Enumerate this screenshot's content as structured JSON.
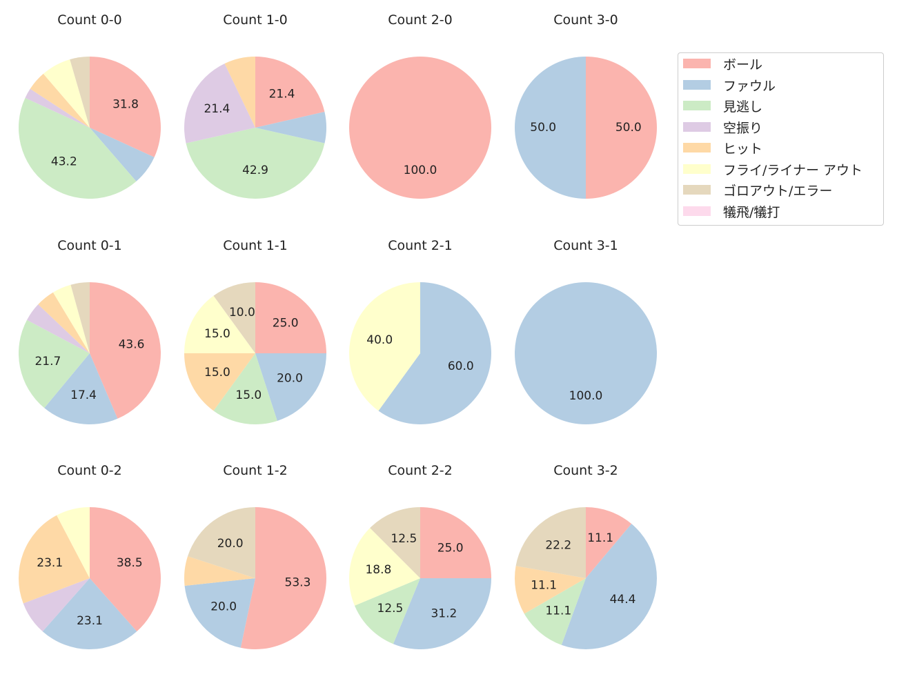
{
  "chart_data": {
    "type": "pie",
    "start_angle": 90,
    "direction": "clockwise",
    "label_min_percent": 10,
    "categories": [
      "ボール",
      "ファウル",
      "見逃し",
      "空振り",
      "ヒット",
      "フライ/ライナー アウト",
      "ゴロアウト/エラー",
      "犠飛/犠打"
    ],
    "colors": [
      "#fbb4ae",
      "#b3cde3",
      "#ccebc5",
      "#decbe4",
      "#fed9a6",
      "#ffffcc",
      "#e5d8bd",
      "#fddaec"
    ],
    "legend_position": "right",
    "charts": [
      {
        "title": "Count 0-0",
        "values": [
          31.8,
          6.8,
          43.2,
          2.3,
          4.5,
          6.8,
          4.5,
          0
        ]
      },
      {
        "title": "Count 1-0",
        "values": [
          21.4,
          7.1,
          42.9,
          21.4,
          7.1,
          0,
          0,
          0
        ]
      },
      {
        "title": "Count 2-0",
        "values": [
          100,
          0,
          0,
          0,
          0,
          0,
          0,
          0
        ]
      },
      {
        "title": "Count 3-0",
        "values": [
          50,
          50,
          0,
          0,
          0,
          0,
          0,
          0
        ]
      },
      {
        "title": "Count 0-1",
        "values": [
          43.5,
          17.4,
          21.7,
          4.3,
          4.3,
          4.3,
          4.3,
          0
        ]
      },
      {
        "title": "Count 1-1",
        "values": [
          25,
          20,
          15,
          0,
          15,
          15,
          10,
          0
        ]
      },
      {
        "title": "Count 2-1",
        "values": [
          0,
          60,
          0,
          0,
          0,
          40,
          0,
          0
        ]
      },
      {
        "title": "Count 3-1",
        "values": [
          0,
          100,
          0,
          0,
          0,
          0,
          0,
          0
        ]
      },
      {
        "title": "Count 0-2",
        "values": [
          38.5,
          23.1,
          0,
          7.7,
          23.1,
          7.7,
          0,
          0
        ]
      },
      {
        "title": "Count 1-2",
        "values": [
          53.3,
          20,
          0,
          0,
          6.7,
          0,
          20,
          0
        ]
      },
      {
        "title": "Count 2-2",
        "values": [
          25,
          31.2,
          12.5,
          0,
          0,
          18.8,
          12.5,
          0
        ]
      },
      {
        "title": "Count 3-2",
        "values": [
          11.1,
          44.4,
          11.1,
          0,
          11.1,
          0,
          22.2,
          0
        ]
      }
    ]
  }
}
